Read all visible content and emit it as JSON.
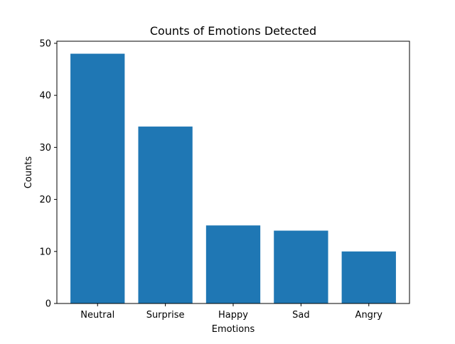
{
  "chart_data": {
    "type": "bar",
    "title": "Counts of Emotions Detected",
    "xlabel": "Emotions",
    "ylabel": "Counts",
    "categories": [
      "Neutral",
      "Surprise",
      "Happy",
      "Sad",
      "Angry"
    ],
    "values": [
      48,
      34,
      15,
      14,
      10
    ],
    "ylim": [
      0,
      50
    ],
    "yticks": [
      0,
      10,
      20,
      30,
      40,
      50
    ],
    "bar_color": "#1f77b4",
    "grid": false,
    "legend": "none"
  }
}
